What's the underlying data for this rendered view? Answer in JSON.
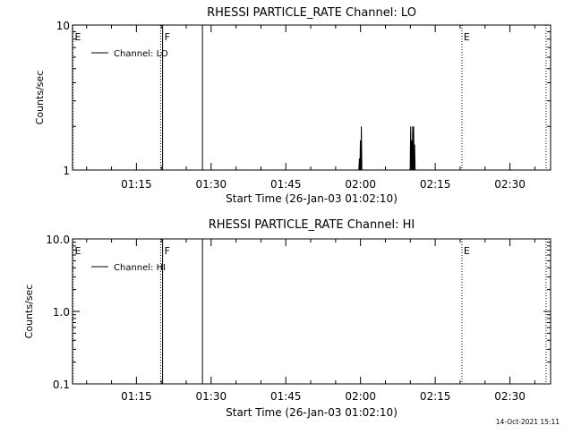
{
  "colors": {
    "background": "#ffffff",
    "ink": "#000000"
  },
  "footer": {
    "timestamp": "14-Oct-2021 15:11"
  },
  "chart_data": [
    {
      "type": "line",
      "title": "RHESSI PARTICLE_RATE Channel: LO",
      "xlabel": "Start Time (26-Jan-03 01:02:10)",
      "ylabel": "Counts/sec",
      "y_scale": "log",
      "ylim": [
        1,
        10
      ],
      "y_ticks": [
        {
          "value": 1,
          "label": "1"
        },
        {
          "value": 10,
          "label": "10"
        }
      ],
      "x_unit": "minutes after 01:02:10",
      "xlim": [
        0,
        96
      ],
      "x_ticks": [
        {
          "value": 12.83,
          "label": "01:15"
        },
        {
          "value": 27.83,
          "label": "01:30"
        },
        {
          "value": 42.83,
          "label": "01:45"
        },
        {
          "value": 57.83,
          "label": "02:00"
        },
        {
          "value": 72.83,
          "label": "02:15"
        },
        {
          "value": 87.83,
          "label": "02:30"
        }
      ],
      "markers": [
        {
          "x": 0,
          "label": "E",
          "style": "dotted"
        },
        {
          "x": 17.6,
          "label": "",
          "style": "dotted"
        },
        {
          "x": 18.0,
          "label": "F",
          "style": "solid"
        },
        {
          "x": 26.0,
          "label": "",
          "style": "solid"
        },
        {
          "x": 78.1,
          "label": "E",
          "style": "dotted"
        },
        {
          "x": 95.0,
          "label": "",
          "style": "dotted"
        }
      ],
      "legend": {
        "entries": [
          "Channel: LO"
        ],
        "position": "top-left"
      },
      "series": [
        {
          "name": "Channel: LO",
          "points": [
            [
              57.5,
              1
            ],
            [
              57.6,
              1.2
            ],
            [
              57.7,
              1
            ],
            [
              57.8,
              1.6
            ],
            [
              57.9,
              1
            ],
            [
              58.0,
              2
            ],
            [
              58.1,
              1
            ],
            [
              58.2,
              1
            ],
            [
              67.8,
              1
            ],
            [
              67.9,
              2
            ],
            [
              68.0,
              1
            ],
            [
              68.1,
              1.6
            ],
            [
              68.2,
              1
            ],
            [
              68.3,
              2
            ],
            [
              68.4,
              1
            ],
            [
              68.5,
              2
            ],
            [
              68.6,
              1
            ],
            [
              68.7,
              1.5
            ],
            [
              68.8,
              1
            ]
          ]
        }
      ]
    },
    {
      "type": "line",
      "title": "RHESSI PARTICLE_RATE Channel: HI",
      "xlabel": "Start Time (26-Jan-03 01:02:10)",
      "ylabel": "Counts/sec",
      "y_scale": "log",
      "ylim": [
        0.1,
        10
      ],
      "y_ticks": [
        {
          "value": 0.1,
          "label": "0.1"
        },
        {
          "value": 1,
          "label": "1.0"
        },
        {
          "value": 10,
          "label": "10.0"
        }
      ],
      "x_unit": "minutes after 01:02:10",
      "xlim": [
        0,
        96
      ],
      "x_ticks": [
        {
          "value": 12.83,
          "label": "01:15"
        },
        {
          "value": 27.83,
          "label": "01:30"
        },
        {
          "value": 42.83,
          "label": "01:45"
        },
        {
          "value": 57.83,
          "label": "02:00"
        },
        {
          "value": 72.83,
          "label": "02:15"
        },
        {
          "value": 87.83,
          "label": "02:30"
        }
      ],
      "markers": [
        {
          "x": 0,
          "label": "E",
          "style": "dotted"
        },
        {
          "x": 17.6,
          "label": "",
          "style": "dotted"
        },
        {
          "x": 18.0,
          "label": "F",
          "style": "solid"
        },
        {
          "x": 26.0,
          "label": "",
          "style": "solid"
        },
        {
          "x": 78.1,
          "label": "E",
          "style": "dotted"
        },
        {
          "x": 95.0,
          "label": "",
          "style": "dotted"
        }
      ],
      "legend": {
        "entries": [
          "Channel: HI"
        ],
        "position": "top-left"
      },
      "series": [
        {
          "name": "Channel: HI",
          "points": []
        }
      ]
    }
  ]
}
